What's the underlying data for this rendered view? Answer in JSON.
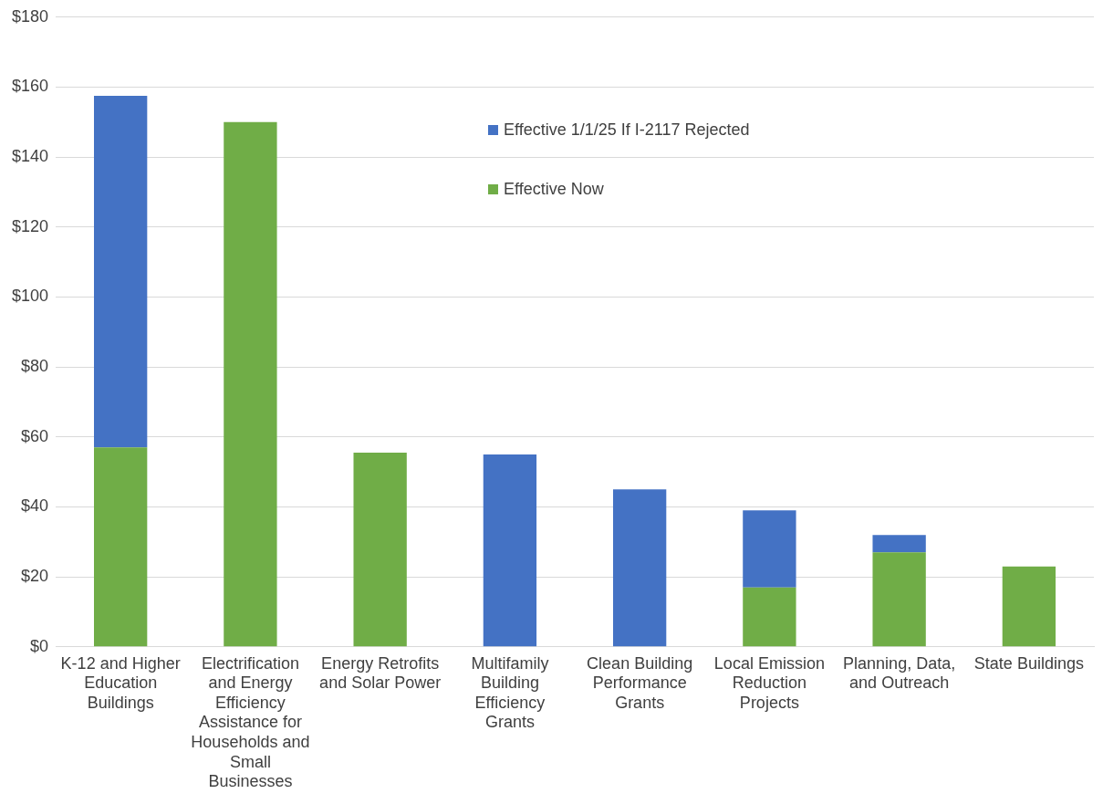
{
  "chart_data": {
    "type": "bar",
    "stacked": true,
    "grid": "y",
    "legend": "top",
    "categories": [
      "K-12 and Higher Education Buildings",
      "Electrification and Energy Efficiency Assistance for Households and Small Businesses",
      "Energy Retrofits and Solar Power",
      "Multifamily Building Efficiency Grants",
      "Clean Building Performance Grants",
      "Local Emission Reduction Projects",
      "Planning, Data, and Outreach",
      "State Buildings"
    ],
    "series": [
      {
        "name": "Effective Now",
        "color": "#70ad47",
        "values": [
          57,
          150,
          55.5,
          null,
          null,
          17,
          27,
          23
        ]
      },
      {
        "name": "Effective 1/1/25 If I-2117 Rejected",
        "color": "#4472c4",
        "values": [
          100.5,
          null,
          null,
          55,
          45,
          22,
          5,
          null
        ]
      }
    ],
    "ylim": [
      0,
      180
    ],
    "yticks": [
      {
        "value": 0,
        "label": "$0"
      },
      {
        "value": 20,
        "label": "$20"
      },
      {
        "value": 40,
        "label": "$40"
      },
      {
        "value": 60,
        "label": "$60"
      },
      {
        "value": 80,
        "label": "$80"
      },
      {
        "value": 100,
        "label": "$100"
      },
      {
        "value": 120,
        "label": "$120"
      },
      {
        "value": 140,
        "label": "$140"
      },
      {
        "value": 160,
        "label": "$160"
      },
      {
        "value": 180,
        "label": "$180"
      }
    ]
  }
}
